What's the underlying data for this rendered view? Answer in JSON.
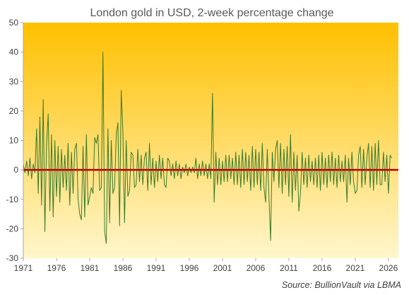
{
  "chart_data": {
    "type": "line",
    "title": "London gold in USD, 2-week percentage change",
    "xlabel": "",
    "ylabel": "",
    "xlim": [
      1971,
      2027.5
    ],
    "ylim": [
      -30,
      50
    ],
    "x_ticks": [
      "1971",
      "1976",
      "1981",
      "1986",
      "1991",
      "1996",
      "2001",
      "2006",
      "2011",
      "2016",
      "2021",
      "2026"
    ],
    "y_ticks": [
      "50",
      "40",
      "30",
      "20",
      "10",
      "0",
      "-10",
      "-20",
      "-30"
    ],
    "grid": false,
    "legend": "none",
    "background_gradient": [
      "#ffc000",
      "#fff6cc"
    ],
    "colors": {
      "series": "#3d7a2a",
      "zero_line": "#c00000"
    },
    "series": [
      {
        "name": "",
        "x_start": 1971.0,
        "x_step": 0.25,
        "values": [
          2,
          -1,
          3,
          -2,
          4,
          -3,
          2,
          -1,
          14,
          -8,
          18,
          -12,
          24,
          -21,
          9,
          19,
          -14,
          12,
          -16,
          10,
          -9,
          8,
          -11,
          7,
          -6,
          5,
          -7,
          9,
          -12,
          6,
          -8,
          7,
          9,
          -10,
          -15,
          -17,
          8,
          -16,
          12,
          -12,
          -9,
          -6,
          -8,
          11,
          9,
          12,
          -7,
          -6,
          40,
          -21,
          -25,
          14,
          -18,
          10,
          -8,
          -6,
          12,
          16,
          -19,
          27,
          13,
          -18,
          10,
          -9,
          -7,
          6,
          5,
          -6,
          -5,
          7,
          -4,
          5,
          -5,
          4,
          6,
          -7,
          9,
          -5,
          4,
          -6,
          3,
          -4,
          5,
          -3,
          4,
          -5,
          -6,
          4,
          3,
          -2,
          2,
          -3,
          3,
          -2,
          2,
          -3,
          1,
          -1,
          2,
          -2,
          1,
          -1,
          1,
          -1,
          4,
          -3,
          2,
          -2,
          3,
          -2,
          2,
          -3,
          2,
          -3,
          26,
          -11,
          6,
          -5,
          4,
          -5,
          3,
          -4,
          5,
          -4,
          5,
          -3,
          4,
          -5,
          6,
          -5,
          5,
          -6,
          7,
          -5,
          6,
          -4,
          5,
          -7,
          8,
          -6,
          7,
          -5,
          6,
          -7,
          9,
          -6,
          -11,
          7,
          -9,
          -24,
          6,
          -4,
          7,
          10,
          -6,
          9,
          -8,
          7,
          -5,
          8,
          -9,
          12,
          -11,
          6,
          -7,
          5,
          -14,
          -8,
          6,
          -5,
          4,
          -6,
          5,
          -4,
          3,
          -5,
          4,
          -6,
          5,
          -7,
          6,
          -5,
          4,
          -6,
          5,
          -4,
          6,
          -5,
          4,
          -6,
          5,
          -4,
          3,
          -4,
          5,
          -11,
          4,
          -5,
          6,
          -4,
          -8,
          -7,
          5,
          8,
          -6,
          7,
          -5,
          4,
          9,
          -6,
          8,
          -7,
          9,
          -5,
          10,
          -5,
          -5,
          6,
          -4,
          5,
          -8,
          5,
          4
        ]
      }
    ],
    "source": {
      "label": "Source:",
      "text": "BullionVault via LBMA"
    }
  }
}
